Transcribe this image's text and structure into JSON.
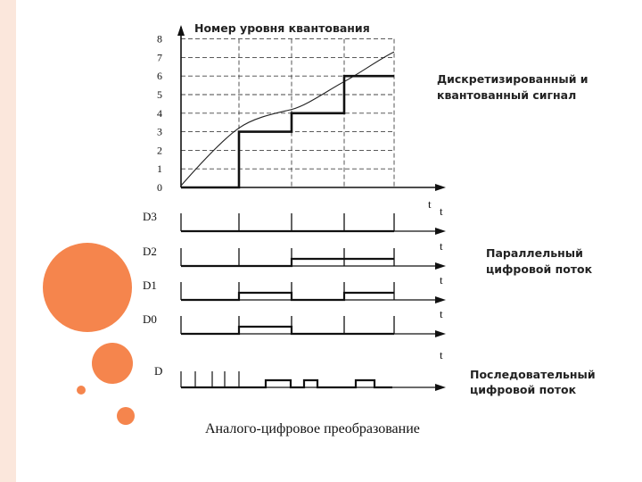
{
  "colors": {
    "band": "#fbe7dc",
    "orange": "#f5854d",
    "ink": "#111111"
  },
  "diagram": {
    "y_axis_title": "Номер уровня квантования",
    "y_levels": [
      "0",
      "1",
      "2",
      "3",
      "4",
      "5",
      "6",
      "7",
      "8"
    ],
    "time_label": "t",
    "annotation_sampled": [
      "Дискретизированный и",
      "квантованный сигнал"
    ],
    "annotation_parallel": [
      "Параллельный",
      "цифровой поток"
    ],
    "annotation_serial": [
      "Последовательный",
      "цифровой поток"
    ],
    "samples": [
      0,
      3,
      4,
      6
    ],
    "channels": [
      {
        "label": "D3",
        "bits": [
          0,
          0,
          0,
          0
        ]
      },
      {
        "label": "D2",
        "bits": [
          0,
          0,
          1,
          1
        ]
      },
      {
        "label": "D1",
        "bits": [
          0,
          1,
          0,
          1
        ]
      },
      {
        "label": "D0",
        "bits": [
          0,
          1,
          0,
          0
        ]
      }
    ],
    "serial_label": "D"
  },
  "caption": "Аналого-цифровое преобразование"
}
